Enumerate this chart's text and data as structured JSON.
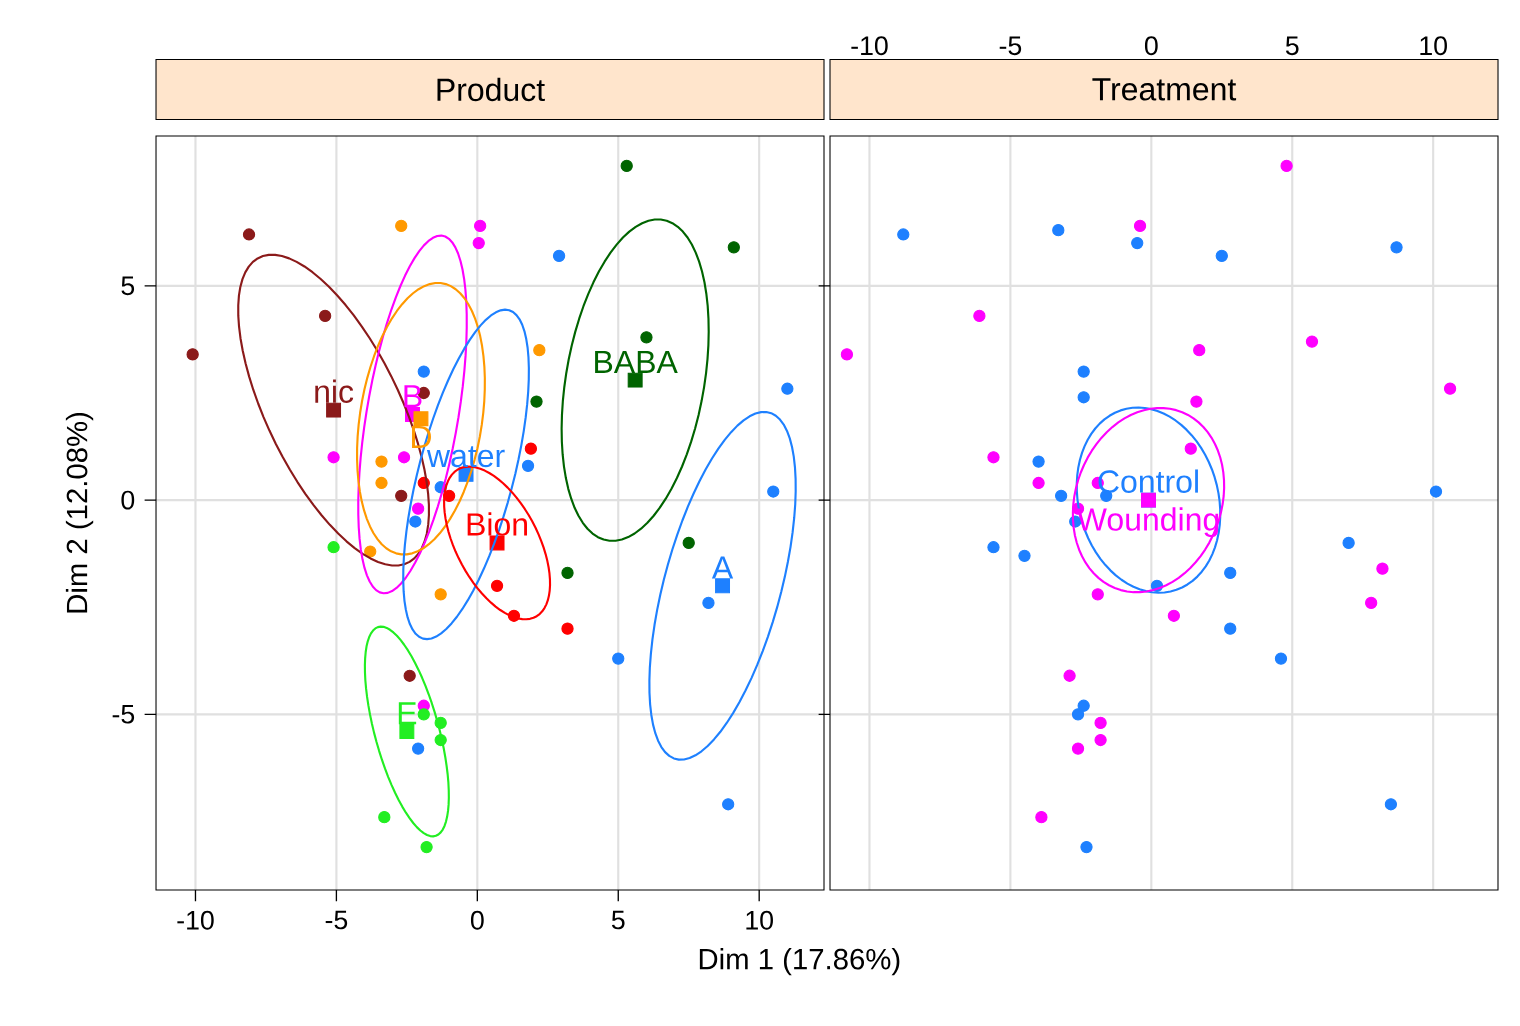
{
  "chart_data": [
    {
      "type": "scatter",
      "title": "Product",
      "xlabel": "Dim 1 (17.86%)",
      "ylabel": "Dim 2 (12.08%)",
      "xlim": [
        -11.4,
        12.3
      ],
      "ylim": [
        -9.1,
        8.5
      ],
      "xticks": [
        -10,
        -5,
        0,
        5,
        10
      ],
      "yticks": [
        -5,
        0,
        5
      ],
      "grid": true,
      "marker": "circle",
      "series": [
        {
          "color": "#8b1a1a",
          "x": [
            -8.1,
            -5.4,
            -10.1,
            -2.7,
            -2.4,
            -1.9
          ],
          "values": [
            6.2,
            4.3,
            3.4,
            0.1,
            -4.1,
            2.5
          ]
        },
        {
          "name": "nic",
          "marker": "square",
          "color": "#8b1a1a",
          "x": [
            -5.1
          ],
          "values": [
            2.1
          ]
        },
        {
          "color": "#ff00ff",
          "x": [
            0.1,
            0.05,
            -5.1,
            -2.6,
            -2.1,
            -1.9
          ],
          "values": [
            6.4,
            6.0,
            1.0,
            1.0,
            -0.2,
            -4.8
          ]
        },
        {
          "name": "B",
          "marker": "square",
          "color": "#ff00ff",
          "x": [
            -2.3
          ],
          "values": [
            2.0
          ]
        },
        {
          "color": "#ff9900",
          "x": [
            -2.7,
            -3.4,
            -3.4,
            -3.8,
            -1.3,
            2.2
          ],
          "values": [
            6.4,
            0.9,
            0.4,
            -1.2,
            -2.2,
            3.5
          ]
        },
        {
          "name": "D",
          "marker": "square",
          "color": "#ff9900",
          "x": [
            -2.0
          ],
          "values": [
            1.9
          ]
        },
        {
          "color": "#1e80ff",
          "x": [
            -1.9,
            -2.2,
            -1.3,
            2.9,
            1.8,
            -2.1
          ],
          "values": [
            3.0,
            -0.5,
            0.3,
            5.7,
            0.8,
            -5.8
          ]
        },
        {
          "name": "water",
          "marker": "square",
          "color": "#1e80ff",
          "x": [
            -0.4
          ],
          "values": [
            0.6
          ]
        },
        {
          "color": "#ff0000",
          "x": [
            -1.9,
            -1.0,
            1.9,
            0.7,
            1.3,
            3.2
          ],
          "values": [
            0.4,
            0.1,
            1.2,
            -2.0,
            -2.7,
            -3.0
          ]
        },
        {
          "name": "Bion",
          "marker": "square",
          "color": "#ff0000",
          "x": [
            0.7
          ],
          "values": [
            -1.0
          ]
        },
        {
          "color": "#006400",
          "x": [
            5.3,
            9.1,
            6.0,
            2.1,
            7.5,
            3.2
          ],
          "values": [
            7.8,
            5.9,
            3.8,
            2.3,
            -1.0,
            -1.7
          ]
        },
        {
          "name": "BABA",
          "marker": "square",
          "color": "#006400",
          "x": [
            5.6
          ],
          "values": [
            2.8
          ]
        },
        {
          "color": "#1e80ff",
          "x": [
            11.0,
            10.5,
            8.2,
            5.0,
            8.9
          ],
          "values": [
            2.6,
            0.2,
            -2.4,
            -3.7,
            -7.1
          ]
        },
        {
          "name": "A",
          "marker": "square",
          "color": "#1e80ff",
          "x": [
            8.7
          ],
          "values": [
            -2.0
          ]
        },
        {
          "color": "#22ee22",
          "x": [
            -5.1,
            -1.9,
            -1.3,
            -1.3,
            -3.3,
            -1.8
          ],
          "values": [
            -1.1,
            -5.0,
            -5.2,
            -5.6,
            -7.4,
            -8.1
          ]
        },
        {
          "name": "E",
          "marker": "square",
          "color": "#22ee22",
          "x": [
            -2.5
          ],
          "values": [
            -5.4
          ]
        }
      ]
    },
    {
      "type": "scatter",
      "title": "Treatment",
      "xlim": [
        -11.4,
        12.3
      ],
      "ylim": [
        -9.1,
        8.5
      ],
      "xticks": [
        -10,
        -5,
        0,
        5,
        10
      ],
      "yticks": [
        -5,
        0,
        5
      ],
      "tick_labels": "x",
      "grid": true,
      "marker": "circle",
      "series": [
        {
          "color": "#1e80ff",
          "x": [
            -8.8,
            -3.3,
            -0.5,
            2.5,
            8.7,
            -2.4,
            -2.4,
            10.1,
            -4.0,
            -3.2,
            -1.6,
            -2.7,
            -5.6,
            -4.5,
            7.0,
            2.8,
            0.2,
            2.8,
            4.6,
            -2.4,
            -2.6,
            8.5,
            -2.3
          ],
          "values": [
            6.2,
            6.3,
            6.0,
            5.7,
            5.9,
            3.0,
            2.4,
            0.2,
            0.9,
            0.1,
            0.1,
            -0.5,
            -1.1,
            -1.3,
            -1.0,
            -1.7,
            -2.0,
            -3.0,
            -3.7,
            -4.8,
            -5.0,
            -7.1,
            -8.1
          ]
        },
        {
          "color": "#ff00ff",
          "x": [
            4.8,
            -0.4,
            -6.1,
            -10.8,
            1.7,
            5.7,
            10.6,
            1.6,
            -5.6,
            -4.0,
            1.4,
            -1.9,
            -2.6,
            -1.9,
            0.8,
            8.2,
            7.8,
            -2.9,
            -1.8,
            -1.8,
            -2.6,
            -3.9
          ],
          "values": [
            7.8,
            6.4,
            4.3,
            3.4,
            3.5,
            3.7,
            2.6,
            2.3,
            1.0,
            0.4,
            1.2,
            0.4,
            -0.2,
            -2.2,
            -2.7,
            -1.6,
            -2.4,
            -4.1,
            -5.2,
            -5.6,
            -5.8,
            -7.4
          ]
        },
        {
          "name": "Control",
          "marker": "square",
          "color": "#1e80ff",
          "x": [
            -0.1
          ],
          "values": [
            0.0
          ]
        },
        {
          "name": "Wounding",
          "marker": "square",
          "color": "#ff00ff",
          "x": [
            -0.1
          ],
          "values": [
            0.0
          ]
        }
      ]
    }
  ]
}
